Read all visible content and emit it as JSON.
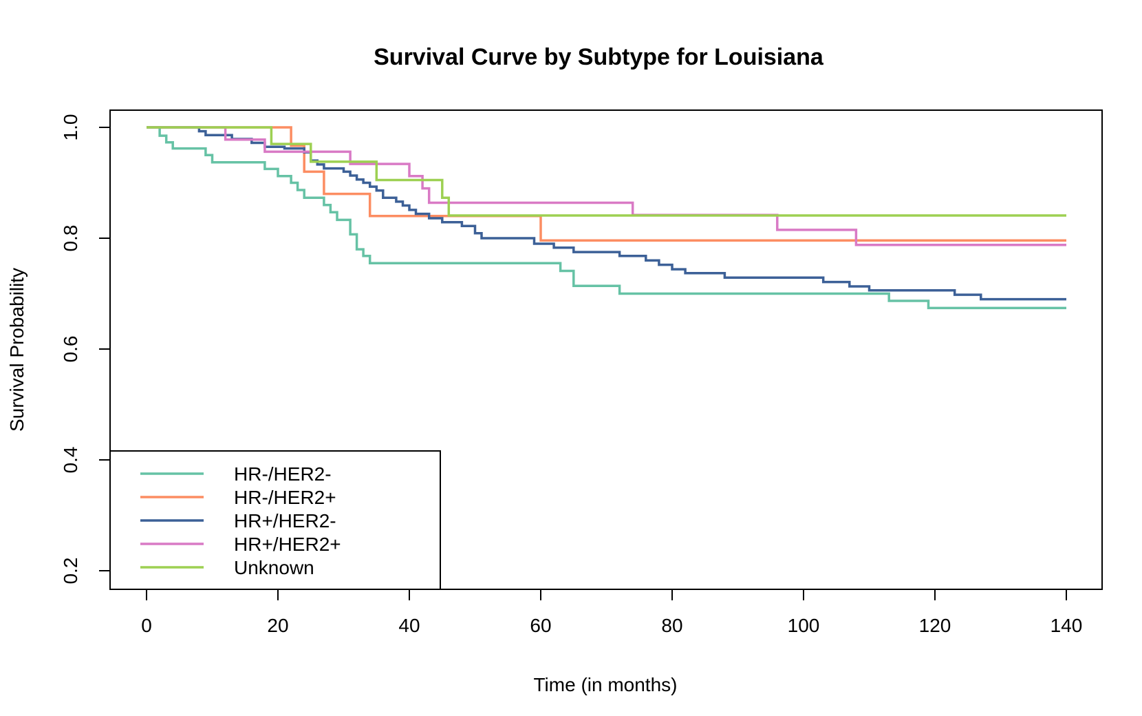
{
  "chart_data": {
    "type": "line",
    "step": true,
    "title": "Survival Curve by Subtype for Louisiana",
    "xlabel": "Time (in months)",
    "ylabel": "Survival Probability",
    "xlim": [
      0,
      140
    ],
    "ylim": [
      0.2,
      1.0
    ],
    "xticks": [
      0,
      20,
      40,
      60,
      80,
      100,
      120,
      140
    ],
    "xtick_labels": [
      "0",
      "20",
      "40",
      "60",
      "80",
      "100",
      "120",
      "140"
    ],
    "yticks": [
      0.2,
      0.4,
      0.6,
      0.8,
      1.0
    ],
    "ytick_labels": [
      "0.2",
      "0.4",
      "0.6",
      "0.8",
      "1.0"
    ],
    "grid": false,
    "legend_position": "bottom-left",
    "series": [
      {
        "name": "HR-/HER2-",
        "color": "#66c2a5",
        "points": [
          [
            0,
            1.0
          ],
          [
            2,
            0.985
          ],
          [
            3,
            0.973
          ],
          [
            4,
            0.962
          ],
          [
            9,
            0.95
          ],
          [
            10,
            0.937
          ],
          [
            18,
            0.925
          ],
          [
            20,
            0.912
          ],
          [
            22,
            0.9
          ],
          [
            23,
            0.887
          ],
          [
            24,
            0.873
          ],
          [
            27,
            0.86
          ],
          [
            28,
            0.847
          ],
          [
            29,
            0.833
          ],
          [
            31,
            0.807
          ],
          [
            32,
            0.78
          ],
          [
            33,
            0.768
          ],
          [
            34,
            0.755
          ],
          [
            63,
            0.741
          ],
          [
            65,
            0.714
          ],
          [
            72,
            0.7
          ],
          [
            113,
            0.687
          ],
          [
            119,
            0.674
          ],
          [
            140,
            0.674
          ]
        ]
      },
      {
        "name": "HR-/HER2+",
        "color": "#fc8d62",
        "points": [
          [
            0,
            1.0
          ],
          [
            22,
            0.967
          ],
          [
            24,
            0.92
          ],
          [
            27,
            0.88
          ],
          [
            34,
            0.84
          ],
          [
            60,
            0.796
          ],
          [
            140,
            0.796
          ]
        ]
      },
      {
        "name": "HR+/HER2-",
        "color": "#3c6097",
        "points": [
          [
            0,
            1.0
          ],
          [
            8,
            0.993
          ],
          [
            9,
            0.986
          ],
          [
            13,
            0.979
          ],
          [
            16,
            0.972
          ],
          [
            18,
            0.965
          ],
          [
            21,
            0.962
          ],
          [
            24,
            0.955
          ],
          [
            25,
            0.94
          ],
          [
            26,
            0.933
          ],
          [
            27,
            0.926
          ],
          [
            30,
            0.92
          ],
          [
            31,
            0.913
          ],
          [
            32,
            0.906
          ],
          [
            33,
            0.9
          ],
          [
            34,
            0.893
          ],
          [
            35,
            0.886
          ],
          [
            36,
            0.873
          ],
          [
            38,
            0.866
          ],
          [
            39,
            0.859
          ],
          [
            40,
            0.851
          ],
          [
            41,
            0.844
          ],
          [
            43,
            0.836
          ],
          [
            45,
            0.829
          ],
          [
            48,
            0.822
          ],
          [
            50,
            0.809
          ],
          [
            51,
            0.8
          ],
          [
            59,
            0.79
          ],
          [
            62,
            0.783
          ],
          [
            65,
            0.775
          ],
          [
            72,
            0.768
          ],
          [
            76,
            0.76
          ],
          [
            78,
            0.752
          ],
          [
            80,
            0.744
          ],
          [
            82,
            0.737
          ],
          [
            88,
            0.729
          ],
          [
            103,
            0.721
          ],
          [
            107,
            0.713
          ],
          [
            110,
            0.706
          ],
          [
            123,
            0.698
          ],
          [
            127,
            0.69
          ],
          [
            140,
            0.69
          ]
        ]
      },
      {
        "name": "HR+/HER2+",
        "color": "#d97ac5",
        "points": [
          [
            0,
            1.0
          ],
          [
            12,
            0.978
          ],
          [
            18,
            0.956
          ],
          [
            31,
            0.934
          ],
          [
            40,
            0.912
          ],
          [
            42,
            0.89
          ],
          [
            43,
            0.864
          ],
          [
            74,
            0.842
          ],
          [
            96,
            0.815
          ],
          [
            108,
            0.788
          ],
          [
            140,
            0.788
          ]
        ]
      },
      {
        "name": "Unknown",
        "color": "#9dd052",
        "points": [
          [
            0,
            1.0
          ],
          [
            19,
            0.97
          ],
          [
            25,
            0.938
          ],
          [
            35,
            0.905
          ],
          [
            45,
            0.873
          ],
          [
            46,
            0.841
          ],
          [
            140,
            0.841
          ]
        ]
      }
    ]
  }
}
